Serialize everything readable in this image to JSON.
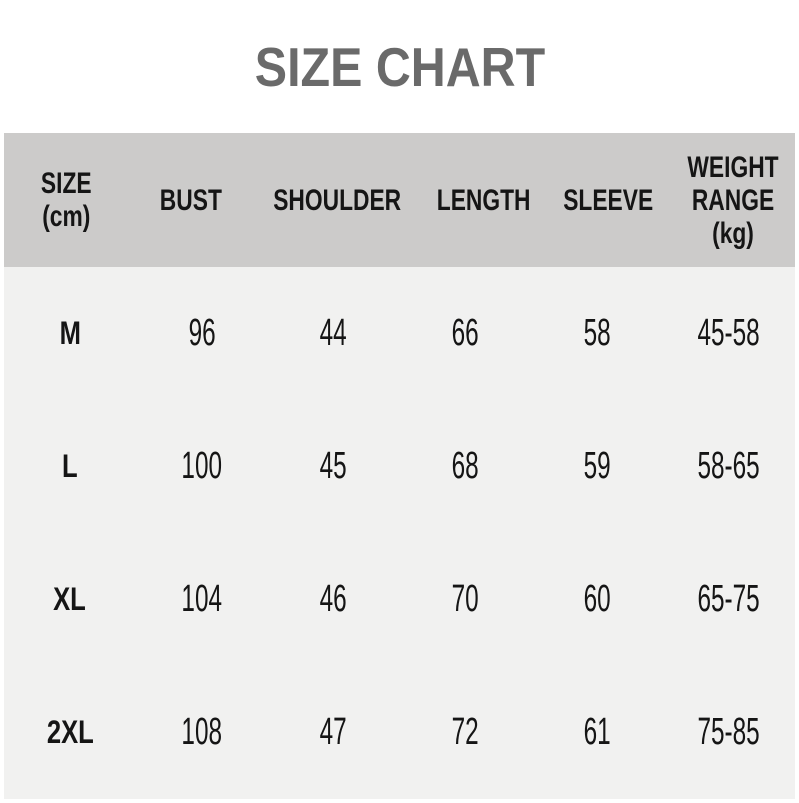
{
  "title": "SIZE CHART",
  "table": {
    "headers": [
      "SIZE  (cm)",
      "BUST",
      "SHOULDER",
      "LENGTH",
      "SLEEVE",
      "WEIGHT\nRANGE\n(kg)"
    ],
    "rows": [
      [
        "M",
        "96",
        "44",
        "66",
        "58",
        "45-58"
      ],
      [
        "L",
        "100",
        "45",
        "68",
        "59",
        "58-65"
      ],
      [
        "XL",
        "104",
        "46",
        "70",
        "60",
        "65-75"
      ],
      [
        "2XL",
        "108",
        "47",
        "72",
        "61",
        "75-85"
      ]
    ]
  },
  "colors": {
    "page_background": "#ffffff",
    "header_band": "#cccbca",
    "body_background": "#f1f1f0",
    "title_text": "#6a6a6a",
    "table_text": "#151515"
  },
  "chart_data": {
    "type": "table",
    "title": "SIZE CHART",
    "units": "cm (weight in kg)",
    "columns": [
      "SIZE (cm)",
      "BUST",
      "SHOULDER",
      "LENGTH",
      "SLEEVE",
      "WEIGHT RANGE (kg)"
    ],
    "rows": [
      {
        "size": "M",
        "bust": 96,
        "shoulder": 44,
        "length": 66,
        "sleeve": 58,
        "weight_range": "45-58"
      },
      {
        "size": "L",
        "bust": 100,
        "shoulder": 45,
        "length": 68,
        "sleeve": 59,
        "weight_range": "58-65"
      },
      {
        "size": "XL",
        "bust": 104,
        "shoulder": 46,
        "length": 70,
        "sleeve": 60,
        "weight_range": "65-75"
      },
      {
        "size": "2XL",
        "bust": 108,
        "shoulder": 47,
        "length": 72,
        "sleeve": 61,
        "weight_range": "75-85"
      }
    ]
  }
}
